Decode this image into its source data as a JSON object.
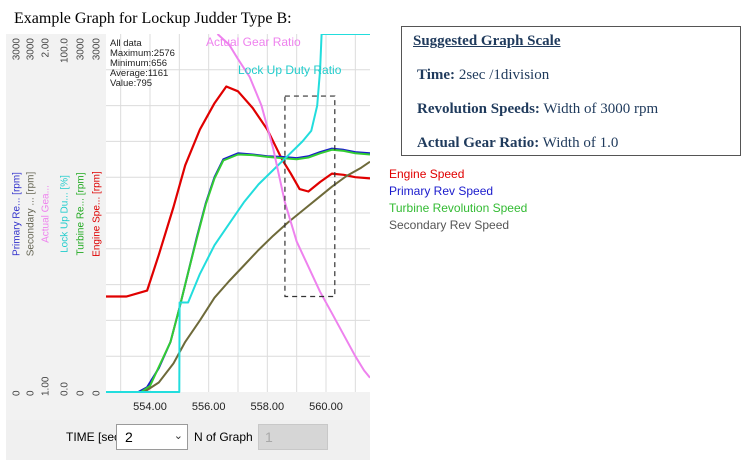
{
  "caption": "Example Graph for Lockup Judder Type B:",
  "chart_data": {
    "type": "line",
    "x_ticks": [
      "554.00",
      "556.00",
      "558.00",
      "560.00"
    ],
    "x_range": [
      552.5,
      561.5
    ],
    "stats": [
      "All data",
      "Maximum:2576",
      "Minimum:656",
      "Average:1161",
      "Value:795"
    ],
    "axes": [
      {
        "label": "Primary Re... [rpm]",
        "top": "3000",
        "bottom": "0",
        "color": "#3333cc"
      },
      {
        "label": "Secondary ... [rpm]",
        "top": "3000",
        "bottom": "0",
        "color": "#666655"
      },
      {
        "label": "Actual Gea...",
        "top": "2.00",
        "bottom": "1.00",
        "color": "#ee82ee"
      },
      {
        "label": "Lock Up Du... [%]",
        "top": "100.0",
        "bottom": "0.0",
        "color": "#22cccc"
      },
      {
        "label": "Turbine Re... [rpm]",
        "top": "3000",
        "bottom": "0",
        "color": "#22aa22"
      },
      {
        "label": "Engine Spe... [rpm]",
        "top": "3000",
        "bottom": "0",
        "color": "#dd0000"
      }
    ],
    "series": [
      {
        "name": "Engine Speed",
        "color": "#e00000",
        "points": [
          [
            552.5,
            800
          ],
          [
            553.2,
            800
          ],
          [
            553.9,
            850
          ],
          [
            554.3,
            1150
          ],
          [
            554.8,
            1550
          ],
          [
            555.2,
            1900
          ],
          [
            555.7,
            2200
          ],
          [
            556.2,
            2420
          ],
          [
            556.6,
            2560
          ],
          [
            557.0,
            2520
          ],
          [
            557.5,
            2380
          ],
          [
            558.0,
            2200
          ],
          [
            558.5,
            1950
          ],
          [
            558.8,
            1830
          ],
          [
            559.1,
            1700
          ],
          [
            559.4,
            1680
          ],
          [
            559.8,
            1760
          ],
          [
            560.2,
            1830
          ],
          [
            560.6,
            1820
          ],
          [
            561.0,
            1800
          ],
          [
            561.5,
            1790
          ]
        ]
      },
      {
        "name": "Primary Rev Speed",
        "color": "#1a1acc",
        "points": [
          [
            552.5,
            0
          ],
          [
            553.6,
            0
          ],
          [
            553.9,
            40
          ],
          [
            554.3,
            200
          ],
          [
            554.7,
            420
          ],
          [
            555.0,
            700
          ],
          [
            555.3,
            1000
          ],
          [
            555.6,
            1300
          ],
          [
            555.9,
            1580
          ],
          [
            556.2,
            1800
          ],
          [
            556.5,
            1950
          ],
          [
            557.0,
            2000
          ],
          [
            557.5,
            1990
          ],
          [
            558.0,
            1975
          ],
          [
            558.5,
            1970
          ],
          [
            559.0,
            1960
          ],
          [
            559.4,
            1975
          ],
          [
            559.8,
            2010
          ],
          [
            560.2,
            2040
          ],
          [
            560.6,
            2030
          ],
          [
            561.0,
            2010
          ],
          [
            561.5,
            2000
          ]
        ]
      },
      {
        "name": "Turbine Revolution Speed",
        "color": "#33cc33",
        "points": [
          [
            552.5,
            0
          ],
          [
            553.7,
            0
          ],
          [
            554.0,
            50
          ],
          [
            554.3,
            210
          ],
          [
            554.7,
            420
          ],
          [
            555.0,
            700
          ],
          [
            555.3,
            1000
          ],
          [
            555.6,
            1290
          ],
          [
            555.9,
            1570
          ],
          [
            556.2,
            1790
          ],
          [
            556.5,
            1940
          ],
          [
            557.0,
            1990
          ],
          [
            557.5,
            1985
          ],
          [
            558.0,
            1970
          ],
          [
            558.5,
            1960
          ],
          [
            559.0,
            1950
          ],
          [
            559.4,
            1965
          ],
          [
            559.8,
            2000
          ],
          [
            560.2,
            2030
          ],
          [
            560.6,
            2020
          ],
          [
            561.0,
            2000
          ],
          [
            561.5,
            1990
          ]
        ]
      },
      {
        "name": "Secondary Rev Speed",
        "color": "#6e6a3a",
        "points": [
          [
            552.5,
            0
          ],
          [
            553.8,
            0
          ],
          [
            554.3,
            80
          ],
          [
            554.8,
            240
          ],
          [
            555.2,
            420
          ],
          [
            555.7,
            600
          ],
          [
            556.2,
            790
          ],
          [
            556.7,
            930
          ],
          [
            557.2,
            1060
          ],
          [
            557.7,
            1190
          ],
          [
            558.2,
            1310
          ],
          [
            558.7,
            1420
          ],
          [
            559.2,
            1520
          ],
          [
            559.7,
            1620
          ],
          [
            560.2,
            1720
          ],
          [
            560.7,
            1810
          ],
          [
            561.2,
            1880
          ],
          [
            561.5,
            1930
          ]
        ]
      },
      {
        "name": "Lock Up Duty Ratio",
        "color": "#22dddd",
        "points": [
          [
            552.5,
            0
          ],
          [
            554.9,
            0
          ],
          [
            555.0,
            0
          ],
          [
            555.01,
            25
          ],
          [
            555.3,
            25
          ],
          [
            555.7,
            33
          ],
          [
            556.2,
            41
          ],
          [
            556.7,
            47
          ],
          [
            557.2,
            53
          ],
          [
            557.7,
            58
          ],
          [
            558.2,
            62
          ],
          [
            558.7,
            66
          ],
          [
            559.2,
            70
          ],
          [
            559.5,
            73
          ],
          [
            559.7,
            80
          ],
          [
            559.8,
            90
          ],
          [
            559.85,
            100
          ],
          [
            560.0,
            100
          ],
          [
            561.5,
            100
          ]
        ]
      },
      {
        "name": "Actual Gear Ratio",
        "color": "#ee82ee",
        "points": [
          [
            556.3,
            2.0
          ],
          [
            556.7,
            1.97
          ],
          [
            557.0,
            1.93
          ],
          [
            557.4,
            1.88
          ],
          [
            557.8,
            1.8
          ],
          [
            558.2,
            1.68
          ],
          [
            558.6,
            1.53
          ],
          [
            559.0,
            1.42
          ],
          [
            559.4,
            1.35
          ],
          [
            559.8,
            1.28
          ],
          [
            560.2,
            1.22
          ],
          [
            560.6,
            1.16
          ],
          [
            561.0,
            1.1
          ],
          [
            561.3,
            1.06
          ],
          [
            561.5,
            1.04
          ]
        ]
      }
    ],
    "annotation_rect": {
      "x": [
        558.6,
        560.3
      ],
      "y": [
        800,
        2480
      ]
    },
    "y_range_rpm": [
      0,
      3000
    ],
    "grid": true
  },
  "plot_labels": {
    "gear": "Actual Gear Ratio",
    "duty": "Lock Up Duty Ratio"
  },
  "controls": {
    "time_label": "TIME [sec]",
    "time_value": "2",
    "ngraph_label": "N of Graph",
    "ngraph_value": "1"
  },
  "scale_box": {
    "title": "Suggested Graph Scale",
    "rows": [
      {
        "label": "Time:",
        "value": " 2sec /1division"
      },
      {
        "label": "Revolution Speeds:",
        "value": " Width of 3000 rpm"
      },
      {
        "label": "Actual Gear Ratio:",
        "value": " Width of 1.0"
      }
    ]
  },
  "legend": [
    {
      "name": "Engine Speed",
      "color": "#e00000"
    },
    {
      "name": "Primary Rev Speed",
      "color": "#1a1acc"
    },
    {
      "name": "Turbine Revolution Speed",
      "color": "#33bb33"
    },
    {
      "name": "Secondary Rev Speed",
      "color": "#555555"
    }
  ]
}
